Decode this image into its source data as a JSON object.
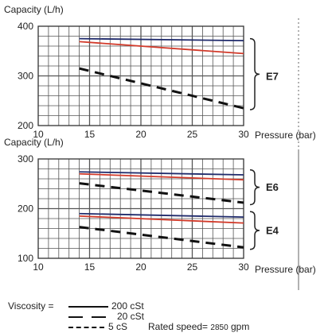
{
  "chart_data": [
    {
      "type": "line",
      "ylabel": "Capacity (L/h)",
      "xlabel": "Pressure (bar)",
      "xlim": [
        10,
        30
      ],
      "ylim": [
        200,
        400
      ],
      "xticks": [
        "10",
        "15",
        "20",
        "25",
        "30"
      ],
      "yticks": [
        "200",
        "300",
        "400"
      ],
      "grid": true,
      "annotations": [
        "E7"
      ],
      "series": [
        {
          "name": "200 cSt",
          "x": [
            14,
            30
          ],
          "y": [
            375,
            371
          ],
          "color": "#1f2a6b",
          "dash": "solid"
        },
        {
          "name": "20 cSt",
          "x": [
            14,
            30
          ],
          "y": [
            369,
            345
          ],
          "color": "#d23a2a",
          "dash": "solid"
        },
        {
          "name": "5 cS",
          "x": [
            14,
            30
          ],
          "y": [
            315,
            235
          ],
          "color": "#111111",
          "dash": "dashed"
        }
      ]
    },
    {
      "type": "line",
      "ylabel": "Capacity (L/h)",
      "xlabel": "Pressure (bar)",
      "xlim": [
        10,
        30
      ],
      "ylim": [
        100,
        300
      ],
      "xticks": [
        "10",
        "15",
        "20",
        "25",
        "30"
      ],
      "yticks": [
        "100",
        "200",
        "300"
      ],
      "grid": true,
      "annotations": [
        "E6",
        "E4"
      ],
      "series": [
        {
          "name": "200 cSt",
          "group": "E6",
          "x": [
            14,
            30
          ],
          "y": [
            274,
            268
          ],
          "color": "#1f2a6b",
          "dash": "solid"
        },
        {
          "name": "20 cSt",
          "group": "E6",
          "x": [
            14,
            30
          ],
          "y": [
            270,
            258
          ],
          "color": "#d23a2a",
          "dash": "solid"
        },
        {
          "name": "5 cS",
          "group": "E6",
          "x": [
            14,
            30
          ],
          "y": [
            251,
            212
          ],
          "color": "#111111",
          "dash": "dashed"
        },
        {
          "name": "200 cSt",
          "group": "E4",
          "x": [
            14,
            30
          ],
          "y": [
            190,
            183
          ],
          "color": "#1f2a6b",
          "dash": "solid"
        },
        {
          "name": "20 cSt",
          "group": "E4",
          "x": [
            14,
            30
          ],
          "y": [
            185,
            171
          ],
          "color": "#d23a2a",
          "dash": "solid"
        },
        {
          "name": "5 cS",
          "group": "E4",
          "x": [
            14,
            30
          ],
          "y": [
            163,
            122
          ],
          "color": "#111111",
          "dash": "dashed"
        }
      ]
    }
  ],
  "legend": {
    "viscosity_label": "Viscosity =",
    "entries": [
      "200 cSt",
      "20 cSt",
      "5 cS"
    ],
    "rated_label": "Rated speed=",
    "rated_value": "2850",
    "rated_unit": "gpm"
  }
}
